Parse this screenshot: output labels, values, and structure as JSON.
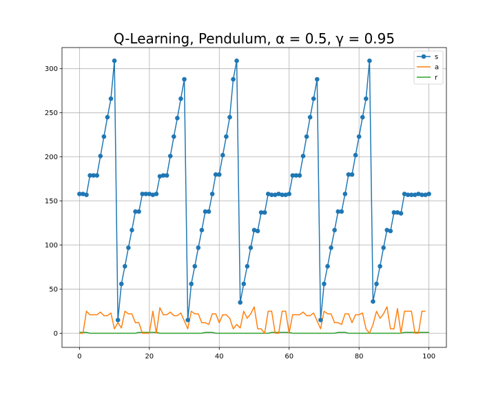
{
  "chart_data": {
    "type": "line",
    "title": "Q-Learning, Pendulum, α = 0.5, γ = 0.95",
    "xlabel": "",
    "ylabel": "",
    "xlim": [
      -5,
      105
    ],
    "ylim": [
      -16,
      324
    ],
    "xticks": [
      0,
      20,
      40,
      60,
      80,
      100
    ],
    "yticks": [
      0,
      50,
      100,
      150,
      200,
      250,
      300
    ],
    "grid": true,
    "legend_position": "top-right",
    "series": [
      {
        "name": "s",
        "color": "#1f77b4",
        "marker": "circle",
        "values": [
          158,
          158,
          157,
          179,
          179,
          179,
          201,
          223,
          245,
          266,
          309,
          15,
          56,
          76,
          97,
          117,
          138,
          138,
          158,
          158,
          158,
          157,
          158,
          178,
          179,
          179,
          201,
          223,
          244,
          266,
          288,
          15,
          56,
          76,
          97,
          117,
          138,
          138,
          158,
          180,
          180,
          202,
          223,
          245,
          288,
          309,
          35,
          56,
          76,
          97,
          117,
          116,
          137,
          137,
          158,
          157,
          157,
          158,
          157,
          157,
          158,
          179,
          179,
          179,
          201,
          223,
          245,
          266,
          288,
          15,
          56,
          76,
          97,
          117,
          138,
          138,
          158,
          180,
          180,
          202,
          223,
          245,
          266,
          309,
          36,
          56,
          76,
          97,
          117,
          116,
          137,
          137,
          136,
          158,
          157,
          157,
          157,
          158,
          157,
          157,
          158
        ]
      },
      {
        "name": "a",
        "color": "#ff7f0e",
        "marker": "none",
        "values": [
          0,
          0,
          25,
          21,
          21,
          21,
          24,
          20,
          20,
          23,
          5,
          12,
          6,
          25,
          22,
          22,
          12,
          12,
          0,
          0,
          0,
          25,
          0,
          29,
          21,
          21,
          24,
          20,
          20,
          23,
          14,
          5,
          25,
          22,
          22,
          12,
          12,
          10,
          22,
          22,
          12,
          21,
          21,
          17,
          5,
          10,
          6,
          25,
          17,
          22,
          30,
          5,
          5,
          0,
          25,
          25,
          0,
          0,
          25,
          25,
          0,
          21,
          21,
          21,
          24,
          20,
          20,
          23,
          14,
          5,
          25,
          22,
          22,
          12,
          12,
          10,
          22,
          22,
          12,
          21,
          21,
          23,
          5,
          0,
          10,
          25,
          17,
          22,
          30,
          5,
          5,
          28,
          0,
          25,
          25,
          25,
          0,
          0,
          25,
          25
        ]
      },
      {
        "name": "r",
        "color": "#2ca02c",
        "marker": "none",
        "values": [
          1,
          1,
          1,
          0,
          0,
          0,
          0,
          0,
          0,
          0,
          0,
          0,
          0,
          0,
          0,
          0,
          0,
          1,
          1,
          1,
          1,
          1,
          1,
          0,
          0,
          0,
          0,
          0,
          0,
          0,
          0,
          0,
          0,
          0,
          0,
          0,
          1,
          1,
          1,
          0,
          0,
          0,
          0,
          0,
          0,
          0,
          0,
          0,
          0,
          0,
          0,
          0,
          0,
          0,
          0,
          1,
          1,
          1,
          1,
          1,
          1,
          0,
          0,
          0,
          0,
          0,
          0,
          0,
          0,
          0,
          0,
          0,
          0,
          0,
          1,
          1,
          1,
          0,
          0,
          0,
          0,
          0,
          0,
          0,
          0,
          0,
          0,
          0,
          0,
          0,
          0,
          0,
          0,
          1,
          1,
          1,
          1,
          1,
          1,
          1,
          1
        ]
      }
    ]
  }
}
